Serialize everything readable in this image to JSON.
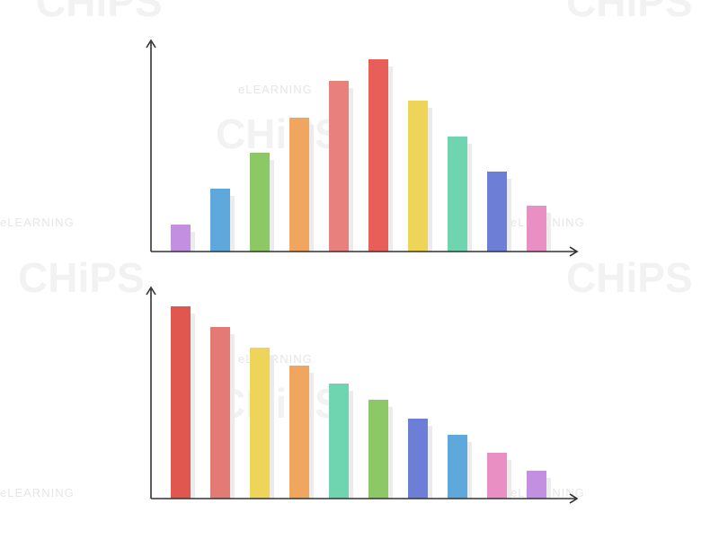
{
  "chart_data": [
    {
      "type": "bar",
      "categories": [
        null,
        null,
        null,
        null,
        null,
        null,
        null,
        null,
        null,
        null
      ],
      "values": [
        30,
        70,
        110,
        149,
        190,
        214,
        168,
        128,
        89,
        51
      ],
      "colors": [
        "#c38fe0",
        "#5fa8dc",
        "#8cc865",
        "#f0a65e",
        "#e8807e",
        "#e85f5a",
        "#eed55a",
        "#6fd4b0",
        "#6c7ed6",
        "#ea8fc4"
      ],
      "ylim": [
        0,
        235
      ]
    },
    {
      "type": "bar",
      "categories": [
        null,
        null,
        null,
        null,
        null,
        null,
        null,
        null,
        null,
        null
      ],
      "values": [
        214,
        191,
        168,
        148,
        128,
        110,
        89,
        71,
        51,
        31
      ],
      "colors": [
        "#e0574f",
        "#e47a76",
        "#eed55a",
        "#f0a65e",
        "#6fd4b0",
        "#8cc865",
        "#6c7ed6",
        "#5fa8dc",
        "#ea8fc4",
        "#c38fe0"
      ],
      "ylim": [
        0,
        235
      ]
    }
  ],
  "watermark": {
    "small": "eLEARNING",
    "large": "CHiPS"
  }
}
